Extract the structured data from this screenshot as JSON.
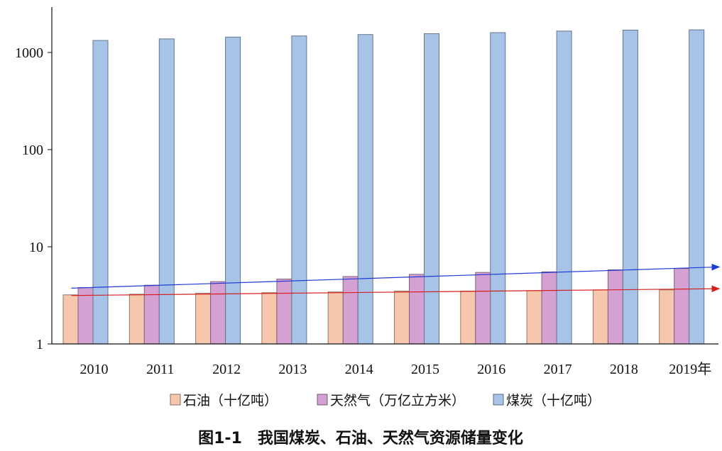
{
  "chart_data": {
    "type": "bar",
    "title": "图1-1　我国煤炭、石油、天然气资源储量变化",
    "y_scale": "log",
    "ylim": [
      1,
      2000
    ],
    "y_ticks": [
      1,
      10,
      100,
      1000
    ],
    "y_tick_labels": [
      "1",
      "10",
      "100",
      "1000"
    ],
    "categories": [
      "2010",
      "2011",
      "2012",
      "2013",
      "2014",
      "2015",
      "2016",
      "2017",
      "2018",
      "2019年"
    ],
    "series": [
      {
        "name": "石油（十亿吨）",
        "color": "#f6c7ad",
        "values": [
          3.2,
          3.25,
          3.33,
          3.37,
          3.43,
          3.5,
          3.5,
          3.54,
          3.6,
          3.6
        ]
      },
      {
        "name": "天然气（万亿立方米）",
        "color": "#d5a0d2",
        "values": [
          3.8,
          4.02,
          4.38,
          4.65,
          4.94,
          5.2,
          5.44,
          5.52,
          5.79,
          5.97
        ]
      },
      {
        "name": "煤炭（十亿吨）",
        "color": "#a7c3e8",
        "values": [
          1330,
          1380,
          1440,
          1480,
          1530,
          1560,
          1600,
          1660,
          1700,
          1710
        ]
      }
    ],
    "trendlines": [
      {
        "series": "天然气（万亿立方米）",
        "color": "#1f3bd6",
        "start": 3.75,
        "end": 6.2
      },
      {
        "series": "石油（十亿吨）",
        "color": "#d62020",
        "start": 3.15,
        "end": 3.7
      }
    ],
    "legend_position": "bottom",
    "grid": false
  }
}
